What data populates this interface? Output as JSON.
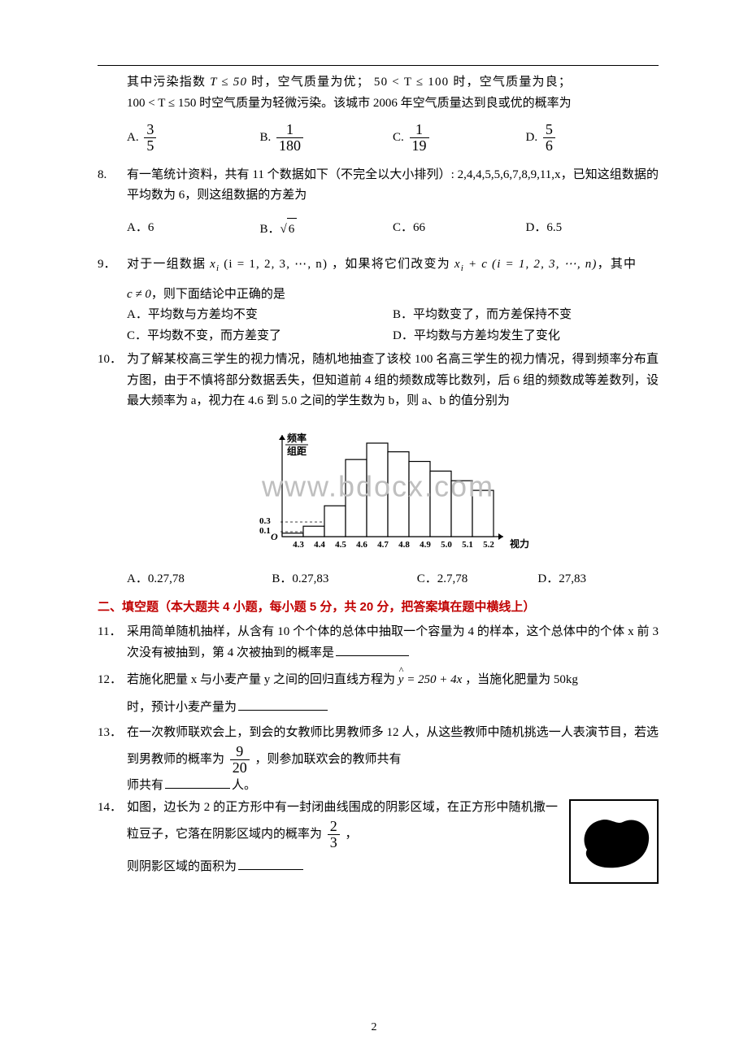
{
  "q7_cont": {
    "line1_a": "其中污染指数",
    "line1_b": "时，空气质量为优；",
    "line1_c": "时，空气质量为良；",
    "cond1": "T ≤ 50",
    "cond2": "50 < T ≤ 100",
    "line2_a": "时空气质量为轻微污染。该城市 2006 年空气质量达到良或优的概率为",
    "cond3": "100 < T ≤ 150",
    "opts": {
      "A": {
        "num": "3",
        "den": "5"
      },
      "B": {
        "num": "1",
        "den": "180"
      },
      "C": {
        "num": "1",
        "den": "19"
      },
      "D": {
        "num": "5",
        "den": "6"
      }
    }
  },
  "q8": {
    "num": "8.",
    "text": "有一笔统计资料，共有 11 个数据如下（不完全以大小排列）: 2,4,4,5,5,6,7,8,9,11,x，已知这组数据的平均数为 6，则这组数据的方差为",
    "opts": {
      "A": "6",
      "B_radicand": "6",
      "C": "66",
      "D": "6.5"
    }
  },
  "q9": {
    "num": "9．",
    "line1_a": "对于一组数据 ",
    "xi": "x",
    "xi_sub": "i",
    "cond1": "(i = 1, 2, 3, ⋯, n)",
    "line1_b": "，如果将它们改变为",
    "expr": "x",
    "expr_sub": "i",
    "plus": " + c (i = 1, 2, 3, ⋯, n)",
    "tail": "，其中",
    "line2": "c ≠ 0",
    "line2b": "，则下面结论中正确的是",
    "A": "平均数与方差均不变",
    "B": "平均数变了，而方差保持不变",
    "C": "平均数不变，而方差变了",
    "D": "平均数与方差均发生了变化"
  },
  "q10": {
    "num": "10．",
    "text": "为了解某校高三学生的视力情况，随机地抽查了该校 100 名高三学生的视力情况，得到频率分布直方图，由于不慎将部分数据丢失，但知道前 4 组的频数成等比数列，后 6 组的频数成等差数列，设最大频率为 a，视力在 4.6 到 5.0 之间的学生数为 b，则 a、b 的值分别为",
    "opts": {
      "A": "0.27,78",
      "B": "0.27,83",
      "C": "2.7,78",
      "D": "27,83"
    },
    "chart": {
      "type": "histogram",
      "ylabel_top": "频率",
      "ylabel_bot": "组距",
      "xlabel": "视力",
      "xticks": [
        "4.3",
        "4.4",
        "4.5",
        "4.6",
        "4.7",
        "4.8",
        "4.9",
        "5.0",
        "5.1",
        "5.2"
      ],
      "yticks": [
        "0.1",
        "0.3"
      ],
      "bar_heights": [
        0.18,
        0.54,
        1.6,
        4.0,
        4.85,
        4.4,
        3.9,
        3.4,
        2.9,
        2.4
      ],
      "bar_max_ref": 4.85,
      "bar_color": "#ffffff",
      "line_color": "#000000",
      "bg": "#ffffff",
      "axis_fontsize": 11
    }
  },
  "section2": "二、填空题（本大题共 4 小题，每小题 5 分，共 20 分，把答案填在题中横线上）",
  "q11": {
    "num": "11．",
    "text": "采用简单随机抽样，从含有 10 个个体的总体中抽取一个容量为 4 的样本，这个总体中的个体 x 前 3 次没有被抽到，第 4 次被抽到的概率是"
  },
  "q12": {
    "num": "12．",
    "text_a": "若施化肥量 x 与小麦产量 y 之间的回归直线方程为",
    "eq_rhs": " = 250 + 4x",
    "text_b": "，当施化肥量为 50kg",
    "text_c": "时，预计小麦产量为"
  },
  "q13": {
    "num": "13．",
    "text_a": "在一次教师联欢会上，到会的女教师比男教师多 12 人，从这些教师中随机挑选一人表演节目，若选到男教师的概率为",
    "frac": {
      "num": "9",
      "den": "20"
    },
    "text_b": "，则参加联欢会的教师共有",
    "text_c": "人。"
  },
  "q14": {
    "num": "14．",
    "text_a": "如图，边长为 2 的正方形中有一封闭曲线围成的阴影区域，在正方形中随机撒一粒豆子，它落在阴影区域内的概率为",
    "frac": {
      "num": "2",
      "den": "3"
    },
    "text_b": "，",
    "text_c": "则阴影区域的面积为"
  },
  "page": "2",
  "watermark": "www.bdocx.com",
  "colors": {
    "section": "#c00000",
    "text": "#000000"
  }
}
